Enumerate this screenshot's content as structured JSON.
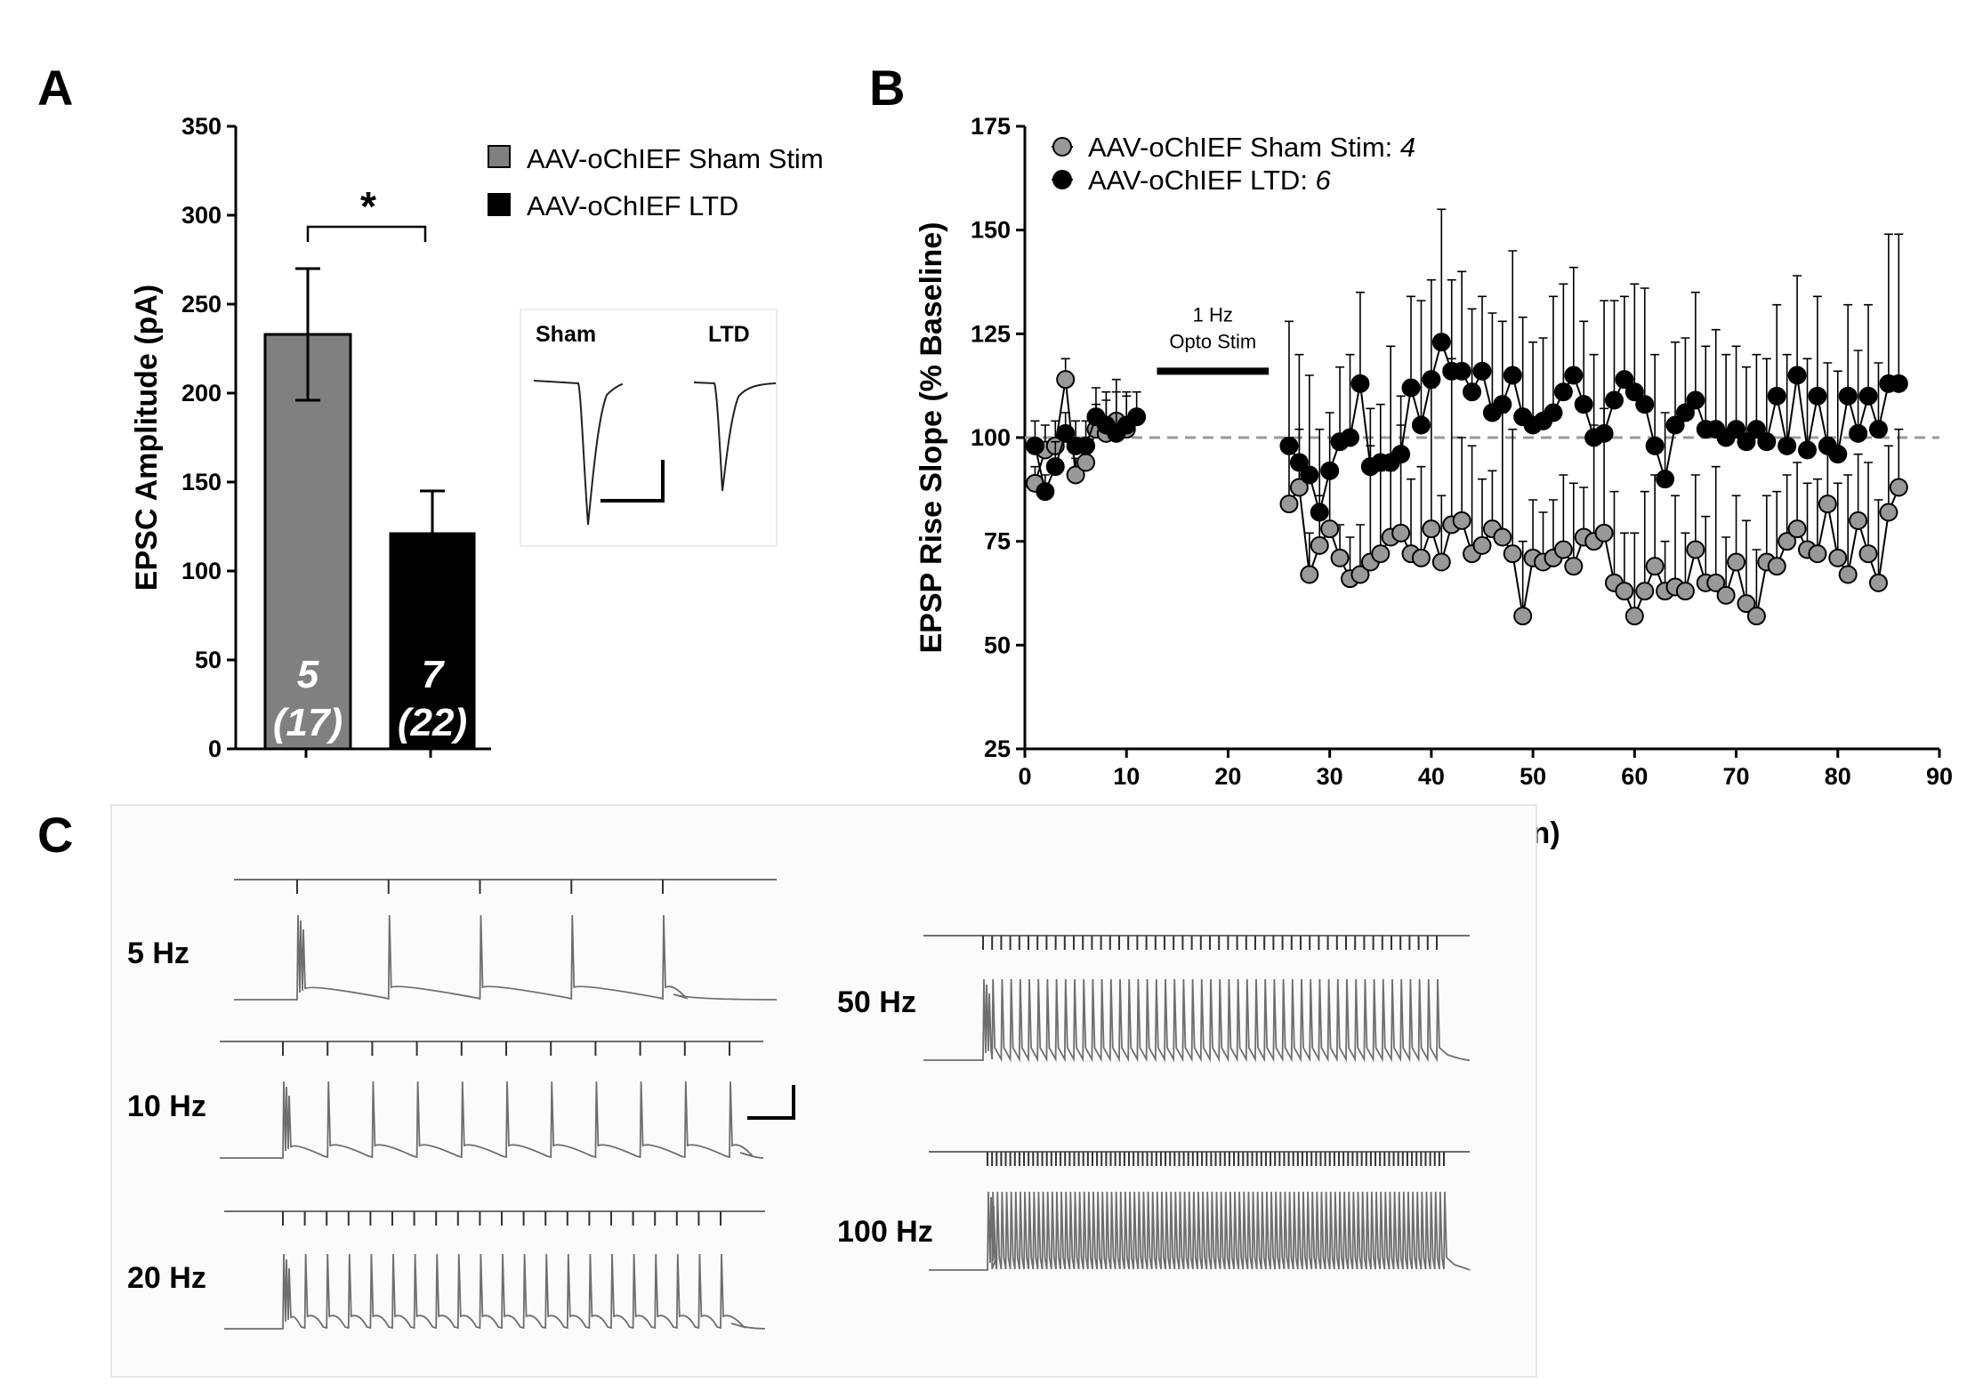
{
  "panel_labels": {
    "a": "A",
    "b": "B",
    "c": "C"
  },
  "chart_data": [
    {
      "type": "bar",
      "panel": "A",
      "ylabel": "EPSC Amplitude (pA)",
      "xlabel": "",
      "ylim": [
        0,
        350
      ],
      "yticks": [
        0,
        50,
        100,
        150,
        200,
        250,
        300,
        350
      ],
      "series": [
        {
          "name": "AAV-oChIEF Sham Stim",
          "value": 233,
          "error": 37,
          "color": "#808080",
          "n_label": "5",
          "cells_label": "(17)"
        },
        {
          "name": "AAV-oChIEF LTD",
          "value": 121,
          "error": 24,
          "color": "#000000",
          "n_label": "7",
          "cells_label": "(22)"
        }
      ],
      "significance": "*",
      "inset": {
        "labels": [
          "Sham",
          "LTD"
        ]
      }
    },
    {
      "type": "scatter",
      "panel": "B",
      "ylabel": "EPSP Rise Slope (% Baseline)",
      "xlabel": "Time  (min)",
      "xlim": [
        0,
        90
      ],
      "ylim": [
        25,
        175
      ],
      "xticks": [
        0,
        10,
        20,
        30,
        40,
        50,
        60,
        70,
        80,
        90
      ],
      "yticks": [
        25,
        50,
        75,
        100,
        125,
        150,
        175
      ],
      "baseline": 100,
      "stim_bar": {
        "start": 13,
        "end": 24,
        "label_line1": "1 Hz",
        "label_line2": "Opto Stim"
      },
      "series": [
        {
          "name": "AAV-oChIEF Sham Stim: ",
          "n": "4",
          "color": "#999999",
          "x": [
            1,
            2,
            3,
            4,
            5,
            6,
            7,
            8,
            9,
            10,
            26,
            27,
            28,
            29,
            30,
            31,
            32,
            33,
            34,
            35,
            36,
            37,
            38,
            39,
            40,
            41,
            42,
            43,
            44,
            45,
            46,
            47,
            48,
            49,
            50,
            51,
            52,
            53,
            54,
            55,
            56,
            57,
            58,
            59,
            60,
            61,
            62,
            63,
            64,
            65,
            66,
            67,
            68,
            69,
            70,
            71,
            72,
            73,
            74,
            75,
            76,
            77,
            78,
            79,
            80,
            81,
            82,
            83,
            84,
            85,
            86
          ],
          "y": [
            89,
            97,
            98,
            114,
            91,
            94,
            102,
            101,
            104,
            102,
            84,
            88,
            67,
            74,
            78,
            71,
            66,
            67,
            70,
            72,
            76,
            77,
            72,
            71,
            78,
            70,
            79,
            80,
            72,
            74,
            78,
            76,
            72,
            57,
            71,
            70,
            71,
            73,
            69,
            76,
            75,
            77,
            65,
            63,
            57,
            63,
            69,
            63,
            64,
            63,
            73,
            65,
            65,
            62,
            70,
            60,
            57,
            70,
            69,
            75,
            78,
            73,
            72,
            84,
            71,
            67,
            80,
            72,
            65,
            82,
            88
          ],
          "err": [
            4,
            6,
            6,
            5,
            4,
            4,
            6,
            8,
            10,
            8,
            16,
            14,
            10,
            12,
            14,
            8,
            10,
            12,
            28,
            20,
            16,
            26,
            18,
            22,
            34,
            16,
            40,
            20,
            26,
            16,
            14,
            30,
            30,
            18,
            14,
            12,
            14,
            18,
            20,
            12,
            28,
            30,
            22,
            14,
            20,
            24,
            22,
            12,
            22,
            14,
            18,
            16,
            28,
            14,
            16,
            20,
            16,
            16,
            18,
            16,
            16,
            16,
            18,
            16,
            18,
            24,
            16,
            22,
            20,
            16,
            14
          ]
        },
        {
          "name": "AAV-oChIEF LTD: ",
          "n": "6",
          "color": "#000000",
          "x": [
            1,
            2,
            3,
            4,
            5,
            6,
            7,
            8,
            9,
            10,
            11,
            26,
            27,
            28,
            29,
            30,
            31,
            32,
            33,
            34,
            35,
            36,
            37,
            38,
            39,
            40,
            41,
            42,
            43,
            44,
            45,
            46,
            47,
            48,
            49,
            50,
            51,
            52,
            53,
            54,
            55,
            56,
            57,
            58,
            59,
            60,
            61,
            62,
            63,
            64,
            65,
            66,
            67,
            68,
            69,
            70,
            71,
            72,
            73,
            74,
            75,
            76,
            77,
            78,
            79,
            80,
            81,
            82,
            83,
            84,
            85,
            86
          ],
          "y": [
            98,
            87,
            93,
            101,
            98,
            98,
            105,
            103,
            101,
            103,
            105,
            98,
            94,
            91,
            82,
            92,
            99,
            100,
            113,
            93,
            94,
            94,
            96,
            112,
            103,
            114,
            123,
            116,
            116,
            111,
            116,
            106,
            108,
            115,
            105,
            103,
            104,
            106,
            111,
            115,
            108,
            100,
            101,
            109,
            114,
            111,
            108,
            98,
            90,
            103,
            106,
            109,
            102,
            102,
            100,
            102,
            99,
            102,
            99,
            110,
            98,
            115,
            97,
            110,
            98,
            96,
            110,
            101,
            110,
            102,
            113,
            113
          ],
          "err": [
            6,
            4,
            6,
            5,
            6,
            6,
            7,
            8,
            10,
            8,
            6,
            30,
            26,
            24,
            20,
            14,
            18,
            20,
            22,
            14,
            14,
            28,
            14,
            22,
            30,
            24,
            32,
            22,
            24,
            20,
            18,
            24,
            20,
            30,
            24,
            20,
            20,
            28,
            26,
            26,
            20,
            20,
            32,
            24,
            20,
            26,
            28,
            22,
            16,
            20,
            18,
            26,
            20,
            24,
            20,
            20,
            18,
            18,
            20,
            22,
            22,
            24,
            22,
            24,
            20,
            20,
            22,
            20,
            22,
            16,
            36,
            36
          ]
        }
      ]
    },
    {
      "type": "traces",
      "panel": "C",
      "labels": [
        "5 Hz",
        "10 Hz",
        "20 Hz",
        "50 Hz",
        "100 Hz"
      ]
    }
  ]
}
